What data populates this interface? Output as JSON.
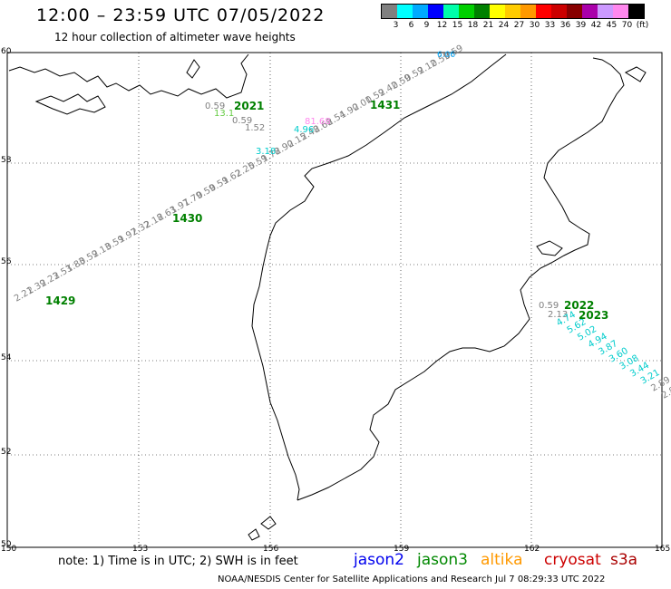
{
  "header": {
    "title": "12:00 – 23:59 UTC 07/05/2022",
    "subtitle": "12 hour collection of altimeter wave heights"
  },
  "legend": {
    "colors": [
      "#808080",
      "#00ffff",
      "#00aaff",
      "#0000ff",
      "#00ffaa",
      "#00d000",
      "#008000",
      "#ffff00",
      "#ffcc00",
      "#ff9900",
      "#ff0000",
      "#cc0000",
      "#880000",
      "#aa00aa",
      "#cc99ff",
      "#ff88ee",
      "#000000"
    ],
    "labels": [
      "3",
      "6",
      "9",
      "12",
      "15",
      "18",
      "21",
      "24",
      "27",
      "30",
      "33",
      "36",
      "39",
      "42",
      "45",
      "70",
      "(ft)"
    ]
  },
  "axes": {
    "lat_labels": [
      "60",
      "58",
      "56",
      "54",
      "52",
      "50"
    ],
    "lon_labels": [
      "150",
      "153",
      "156",
      "159",
      "162",
      "165"
    ]
  },
  "passes": [
    {
      "label": "2021",
      "color": "#008000"
    },
    {
      "label": "1431",
      "color": "#008000"
    },
    {
      "label": "1430",
      "color": "#008000"
    },
    {
      "label": "1429",
      "color": "#008000"
    },
    {
      "label": "2022",
      "color": "#008000"
    },
    {
      "label": "2023",
      "color": "#008000"
    }
  ],
  "track_values": {
    "track_1429_1431": [
      "2.21",
      "2.39",
      "2.23",
      "2.53",
      "1.83",
      "0.59",
      "2.13",
      "0.59",
      "1.97",
      "2.32",
      "2.18",
      "2.63",
      "1.97",
      "1.79",
      "0.59",
      "0.59",
      "1.62",
      "2.25",
      "0.59",
      "1.78",
      "2.90",
      "2.15",
      "2.48",
      "2.68",
      "2.54",
      "1.90",
      "2.01",
      "0.59",
      "2.42",
      "0.59",
      "0.59",
      "2.12",
      "0.59",
      "0.59"
    ],
    "track_2021": [
      "0.59",
      "13.1",
      "0.59",
      "1.52"
    ],
    "track_cyan_top": [
      "6.06"
    ],
    "track_cyan_mid": [
      "4.96",
      "3.18"
    ],
    "track_pink": [
      "81.68"
    ],
    "track_2022": [
      "0.59",
      "2.13"
    ],
    "track_2023": [
      "4.74",
      "5.62",
      "5.02",
      "4.94",
      "3.87",
      "3.60",
      "3.08",
      "3.44",
      "3.21",
      "2.89",
      "2.8"
    ]
  },
  "footer": {
    "note": "note: 1) Time is in UTC; 2) SWH is in feet",
    "satellites": [
      {
        "name": "jason2",
        "color": "#0000ee"
      },
      {
        "name": "jason3",
        "color": "#008800"
      },
      {
        "name": "altika",
        "color": "#ff9900"
      },
      {
        "name": "cryosat",
        "color": "#cc0000"
      },
      {
        "name": "s3a",
        "color": "#aa0000"
      }
    ],
    "credit": "NOAA/NESDIS Center for Satellite Applications and Research   Jul  7 08:29:33 UTC 2022"
  }
}
